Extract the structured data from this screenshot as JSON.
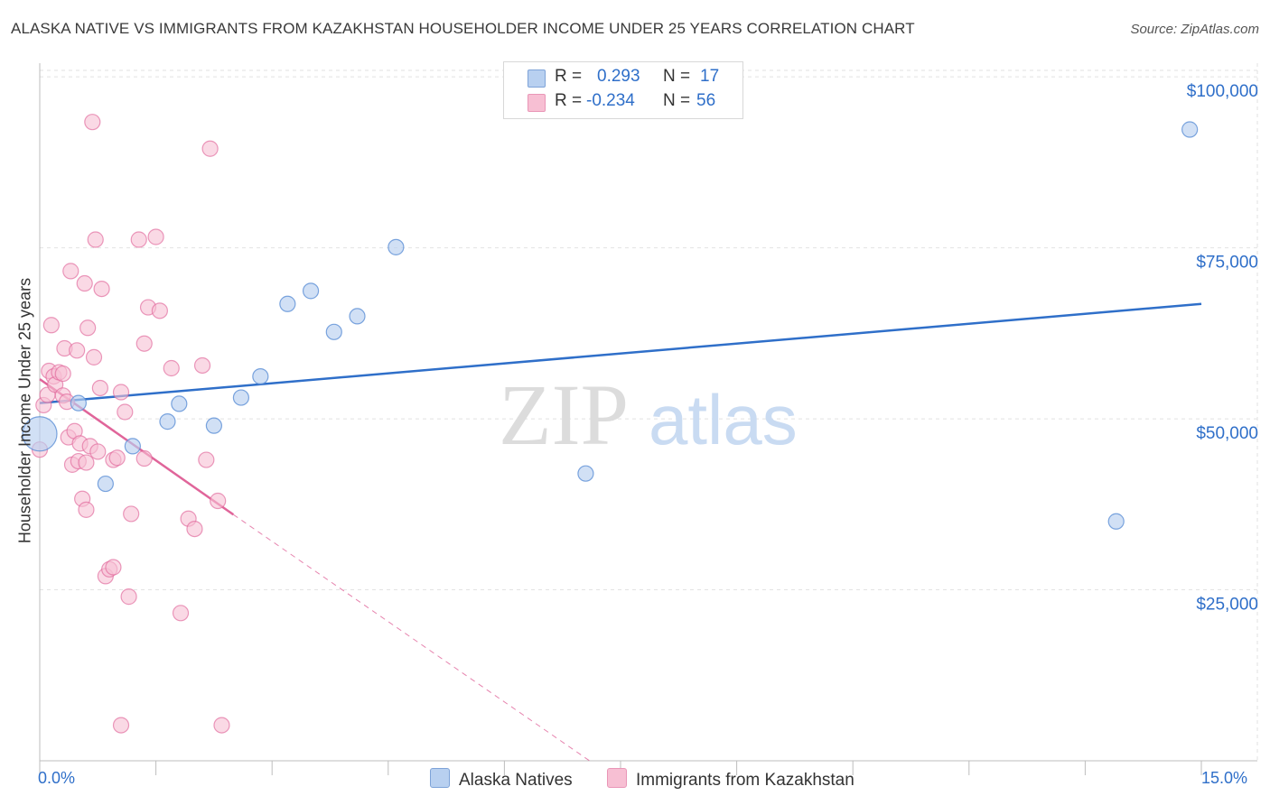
{
  "title": "ALASKA NATIVE VS IMMIGRANTS FROM KAZAKHSTAN HOUSEHOLDER INCOME UNDER 25 YEARS CORRELATION CHART",
  "source": "Source: ZipAtlas.com",
  "watermark": {
    "zip": "ZIP",
    "atlas": "atlas"
  },
  "colors": {
    "blue": "#2f6fc9",
    "blue_fill": "#b8d0f0",
    "pink": "#e0659a",
    "pink_fill": "#f7bfd3"
  },
  "legend": {
    "series1": {
      "r_label": "R =",
      "r_value": "0.293",
      "n_label": "N =",
      "n_value": "17"
    },
    "series2": {
      "r_label": "R =",
      "r_value": "-0.234",
      "n_label": "N =",
      "n_value": "56"
    }
  },
  "bottom_legend": {
    "series1": "Alaska Natives",
    "series2": "Immigrants from Kazakhstan"
  },
  "chart_data": {
    "type": "scatter",
    "title": "ALASKA NATIVE VS IMMIGRANTS FROM KAZAKHSTAN HOUSEHOLDER INCOME UNDER 25 YEARS CORRELATION CHART",
    "xlabel": "",
    "ylabel": "Householder Income Under 25 years",
    "xlim": [
      0,
      15
    ],
    "ylim": [
      0,
      102000
    ],
    "x_tick_labels": [
      "0.0%",
      "15.0%"
    ],
    "y_ticks": [
      25000,
      50000,
      75000,
      100000
    ],
    "y_tick_labels": [
      "$25,000",
      "$50,000",
      "$75,000",
      "$100,000"
    ],
    "series": [
      {
        "name": "Alaska Natives",
        "color": "#2f6fc9",
        "points": [
          [
            0.0,
            47800
          ],
          [
            0.5,
            52300
          ],
          [
            0.85,
            40500
          ],
          [
            1.2,
            46000
          ],
          [
            1.65,
            49600
          ],
          [
            1.8,
            52200
          ],
          [
            2.25,
            49000
          ],
          [
            2.6,
            53100
          ],
          [
            2.85,
            56200
          ],
          [
            3.2,
            66800
          ],
          [
            3.5,
            68700
          ],
          [
            3.8,
            62700
          ],
          [
            4.1,
            65000
          ],
          [
            4.6,
            75100
          ],
          [
            7.05,
            42000
          ],
          [
            13.9,
            35000
          ],
          [
            14.85,
            92300
          ]
        ],
        "trendline": {
          "x": [
            0.0,
            15.0
          ],
          "y": [
            52300,
            66800
          ]
        }
      },
      {
        "name": "Immigrants from Kazakhstan",
        "color": "#e0659a",
        "points": [
          [
            0.0,
            45500
          ],
          [
            0.05,
            52000
          ],
          [
            0.1,
            53500
          ],
          [
            0.12,
            57000
          ],
          [
            0.15,
            63700
          ],
          [
            0.18,
            56200
          ],
          [
            0.2,
            55000
          ],
          [
            0.25,
            56800
          ],
          [
            0.3,
            53400
          ],
          [
            0.32,
            60300
          ],
          [
            0.35,
            52500
          ],
          [
            0.37,
            47300
          ],
          [
            0.4,
            71600
          ],
          [
            0.42,
            43300
          ],
          [
            0.45,
            48200
          ],
          [
            0.48,
            60000
          ],
          [
            0.5,
            43800
          ],
          [
            0.52,
            46400
          ],
          [
            0.55,
            38300
          ],
          [
            0.58,
            69800
          ],
          [
            0.6,
            36700
          ],
          [
            0.62,
            63300
          ],
          [
            0.65,
            46000
          ],
          [
            0.68,
            93400
          ],
          [
            0.7,
            59000
          ],
          [
            0.72,
            76200
          ],
          [
            0.75,
            45200
          ],
          [
            0.78,
            54500
          ],
          [
            0.8,
            69000
          ],
          [
            0.85,
            27000
          ],
          [
            0.9,
            28000
          ],
          [
            0.95,
            44000
          ],
          [
            1.0,
            44300
          ],
          [
            1.05,
            53900
          ],
          [
            1.1,
            51000
          ],
          [
            1.15,
            24000
          ],
          [
            1.18,
            36100
          ],
          [
            1.28,
            76200
          ],
          [
            1.35,
            61000
          ],
          [
            1.4,
            66300
          ],
          [
            1.5,
            76600
          ],
          [
            1.55,
            65800
          ],
          [
            1.7,
            57400
          ],
          [
            1.82,
            21600
          ],
          [
            1.92,
            35400
          ],
          [
            2.0,
            33900
          ],
          [
            2.1,
            57800
          ],
          [
            2.2,
            89500
          ],
          [
            2.3,
            38000
          ],
          [
            0.95,
            28300
          ],
          [
            1.05,
            5200
          ],
          [
            1.35,
            44200
          ],
          [
            2.15,
            44000
          ],
          [
            2.35,
            5200
          ],
          [
            0.6,
            43600
          ],
          [
            0.3,
            56600
          ]
        ],
        "trendline": {
          "x": [
            0.0,
            2.5
          ],
          "y": [
            55800,
            36000
          ]
        },
        "trendline_extension": {
          "x": [
            2.5,
            7.1
          ],
          "y": [
            36000,
            0
          ]
        }
      }
    ]
  }
}
